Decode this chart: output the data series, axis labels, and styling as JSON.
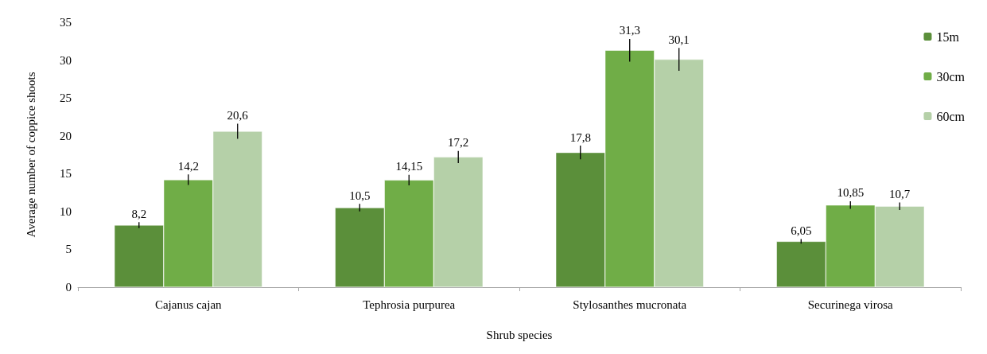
{
  "chart_data": {
    "type": "bar",
    "xlabel": "Shrub species",
    "ylabel": "Average number of coppice shoots",
    "categories": [
      "Cajanus cajan",
      "Tephrosia purpurea",
      "Stylosanthes mucronata",
      "Securinega virosa"
    ],
    "series": [
      {
        "name": "15m",
        "color": "#5b8f3a",
        "values": [
          8.2,
          10.5,
          17.8,
          6.05
        ],
        "errors": [
          0.4,
          0.5,
          0.9,
          0.3
        ],
        "value_labels": [
          "8,2",
          "10,5",
          "17,8",
          "6,05"
        ]
      },
      {
        "name": "30cm",
        "color": "#70ad47",
        "values": [
          14.2,
          14.15,
          31.3,
          10.85
        ],
        "errors": [
          0.7,
          0.7,
          1.5,
          0.5
        ],
        "value_labels": [
          "14,2",
          "14,15",
          "31,3",
          "10,85"
        ]
      },
      {
        "name": "60cm",
        "color": "#b5d0a8",
        "values": [
          20.6,
          17.2,
          30.1,
          10.7
        ],
        "errors": [
          1.0,
          0.8,
          1.5,
          0.5
        ],
        "value_labels": [
          "20,6",
          "17,2",
          "30,1",
          "10,7"
        ]
      }
    ],
    "ylim": [
      0,
      35
    ],
    "yticks": [
      0,
      5,
      10,
      15,
      20,
      25,
      30,
      35
    ],
    "grid": false,
    "legend": "top right"
  }
}
